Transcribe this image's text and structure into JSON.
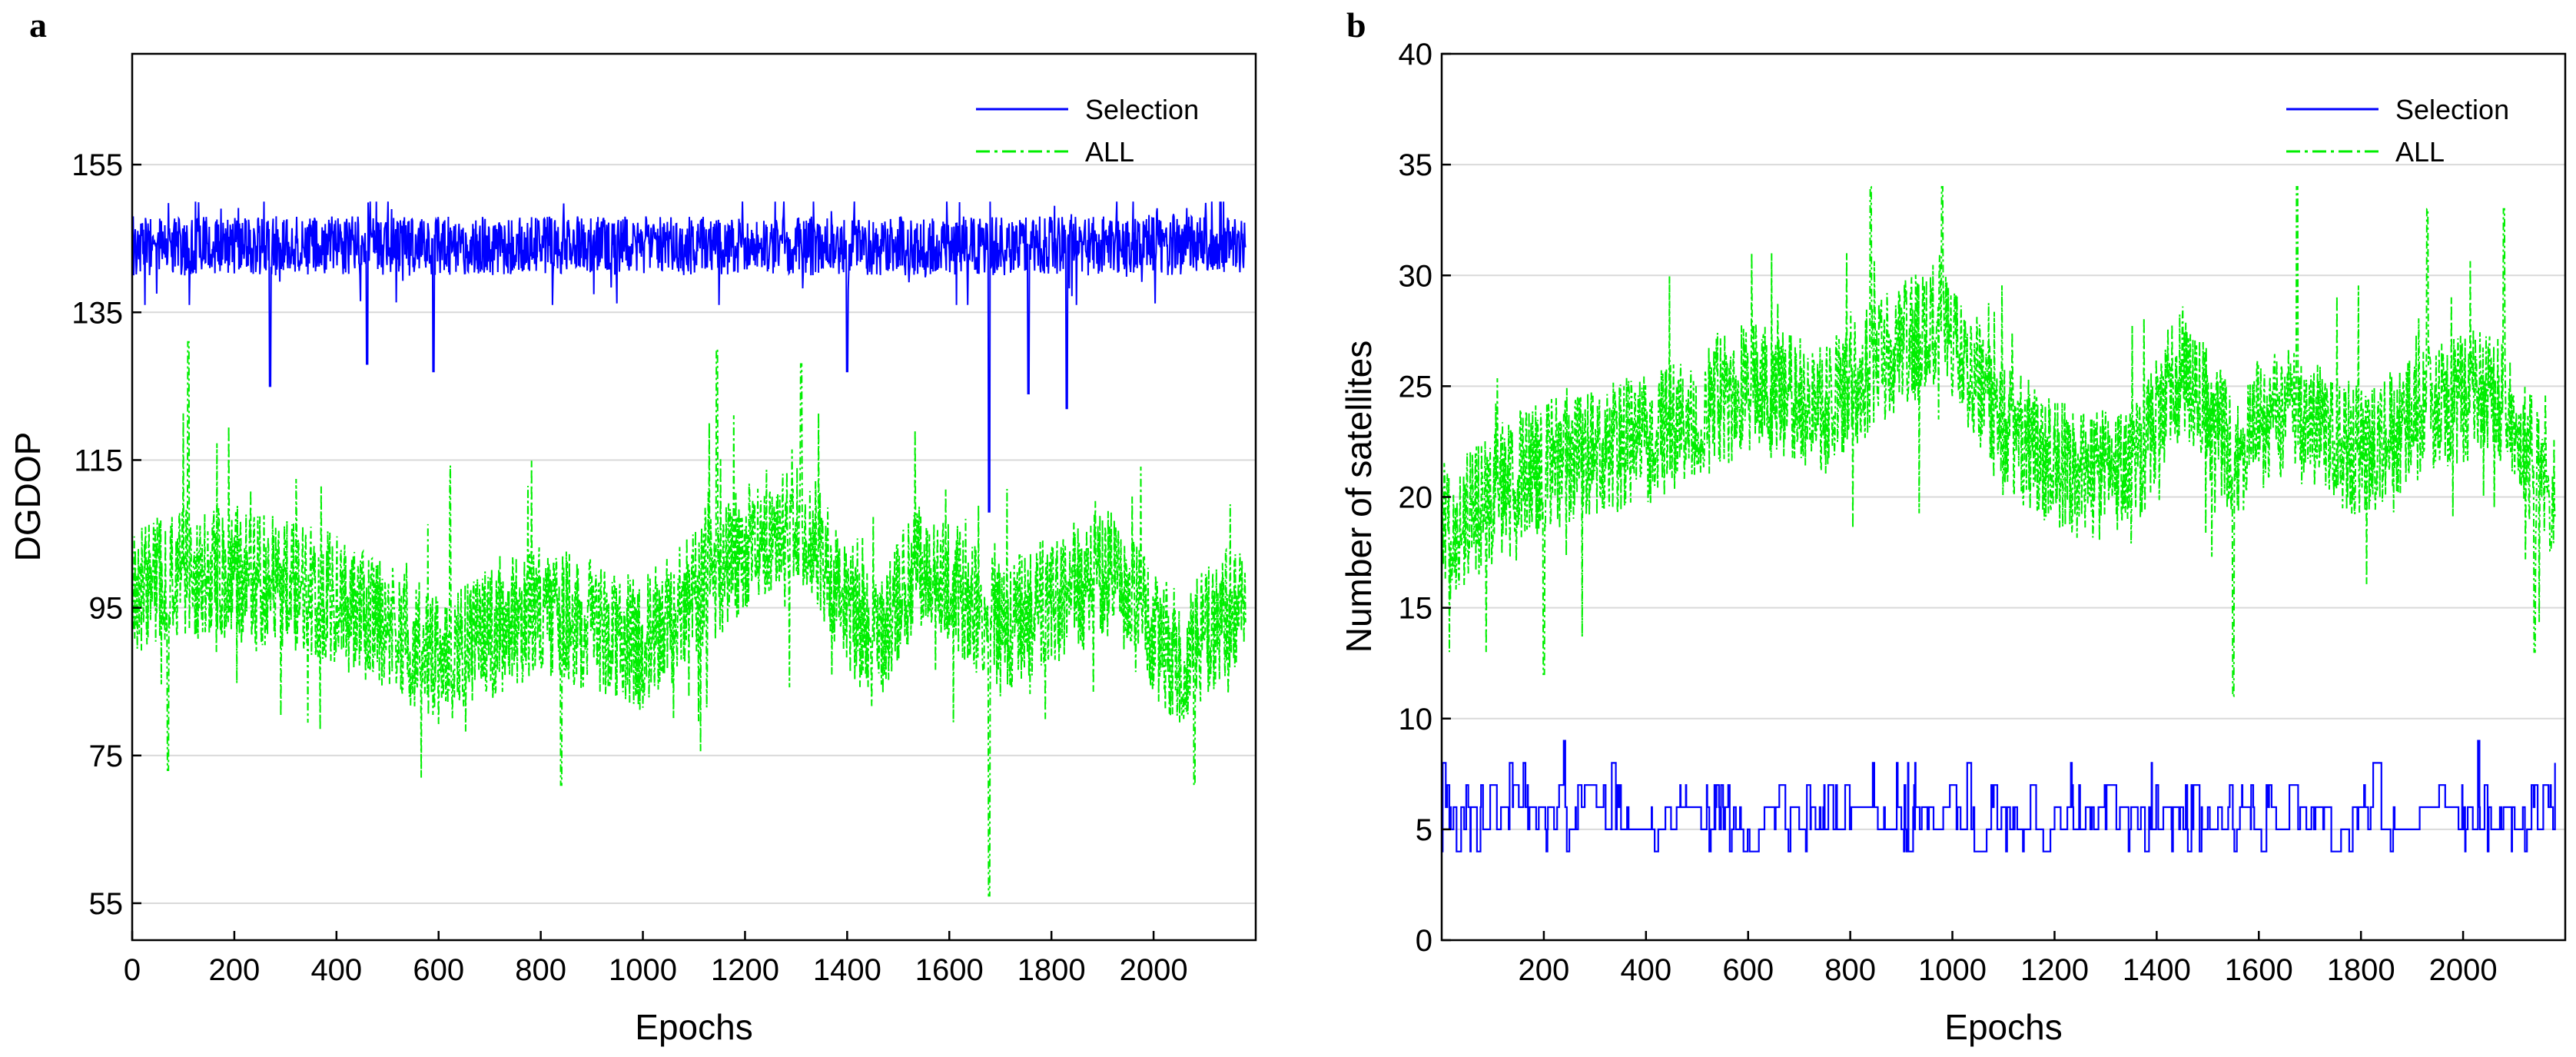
{
  "chart_data": [
    {
      "panel": "a",
      "type": "line",
      "title": "",
      "xlabel": "Epochs",
      "ylabel": "DGDOP",
      "xlim": [
        0,
        2200
      ],
      "ylim": [
        50,
        170
      ],
      "xticks": [
        0,
        200,
        400,
        600,
        800,
        1000,
        1200,
        1400,
        1600,
        1800,
        2000
      ],
      "yticks": [
        55,
        75,
        95,
        115,
        135,
        155
      ],
      "grid": "horizontal",
      "legend_position": "top-right",
      "series": [
        {
          "name": "Selection",
          "color": "#0000ff",
          "style": "solid",
          "kind": "noisy",
          "base": 144,
          "amp": 4,
          "min": 136,
          "max": 150,
          "spikes": [
            [
              270,
              125
            ],
            [
              460,
              128
            ],
            [
              590,
              127
            ],
            [
              1400,
              127
            ],
            [
              1678,
              108
            ],
            [
              1755,
              124
            ],
            [
              1830,
              122
            ]
          ]
        },
        {
          "name": "ALL",
          "color": "#00ee00",
          "style": "dashdot",
          "kind": "noisy",
          "trend": [
            [
              0,
              98
            ],
            [
              200,
              100
            ],
            [
              400,
              96
            ],
            [
              600,
              88
            ],
            [
              800,
              95
            ],
            [
              1000,
              90
            ],
            [
              1150,
              100
            ],
            [
              1300,
              108
            ],
            [
              1450,
              90
            ],
            [
              1550,
              102
            ],
            [
              1700,
              92
            ],
            [
              1900,
              100
            ],
            [
              2050,
              88
            ],
            [
              2200,
              98
            ]
          ],
          "amp": 9,
          "min": 72,
          "max": 130,
          "spikes": [
            [
              70,
              73
            ],
            [
              110,
              131
            ],
            [
              1145,
              130
            ],
            [
              1310,
              128
            ],
            [
              840,
              71
            ],
            [
              1678,
              56
            ],
            [
              2080,
              71
            ]
          ]
        }
      ]
    },
    {
      "panel": "b",
      "type": "line",
      "title": "",
      "xlabel": "Epochs",
      "ylabel": "Number of satellites",
      "xlim": [
        0,
        2200
      ],
      "ylim": [
        0,
        40
      ],
      "xticks": [
        200,
        400,
        600,
        800,
        1000,
        1200,
        1400,
        1600,
        1800,
        2000
      ],
      "yticks": [
        0,
        5,
        10,
        15,
        20,
        25,
        30,
        35,
        40
      ],
      "grid": "horizontal",
      "legend_position": "top-right",
      "series": [
        {
          "name": "Selection",
          "color": "#0000ff",
          "style": "solid",
          "kind": "steps",
          "levels": [
            4,
            5,
            6,
            7,
            8
          ],
          "weights": [
            0.08,
            0.42,
            0.35,
            0.12,
            0.03
          ],
          "spikes": [
            [
              240,
              9
            ],
            [
              2030,
              9
            ]
          ]
        },
        {
          "name": "ALL",
          "color": "#00ee00",
          "style": "dashdot",
          "kind": "noisy",
          "trend": [
            [
              0,
              18
            ],
            [
              150,
              21
            ],
            [
              300,
              22
            ],
            [
              450,
              23
            ],
            [
              600,
              25
            ],
            [
              750,
              24
            ],
            [
              850,
              26
            ],
            [
              980,
              28
            ],
            [
              1100,
              23
            ],
            [
              1250,
              21
            ],
            [
              1350,
              21
            ],
            [
              1450,
              26
            ],
            [
              1550,
              22
            ],
            [
              1650,
              24
            ],
            [
              1800,
              22
            ],
            [
              1950,
              24
            ],
            [
              2050,
              25
            ],
            [
              2200,
              19
            ]
          ],
          "amp": 3,
          "min": 13,
          "max": 31,
          "spikes": [
            [
              200,
              12
            ],
            [
              840,
              34
            ],
            [
              980,
              34
            ],
            [
              1550,
              11
            ],
            [
              1675,
              34
            ],
            [
              1930,
              33
            ],
            [
              2080,
              33
            ],
            [
              2140,
              13
            ]
          ]
        }
      ]
    }
  ]
}
